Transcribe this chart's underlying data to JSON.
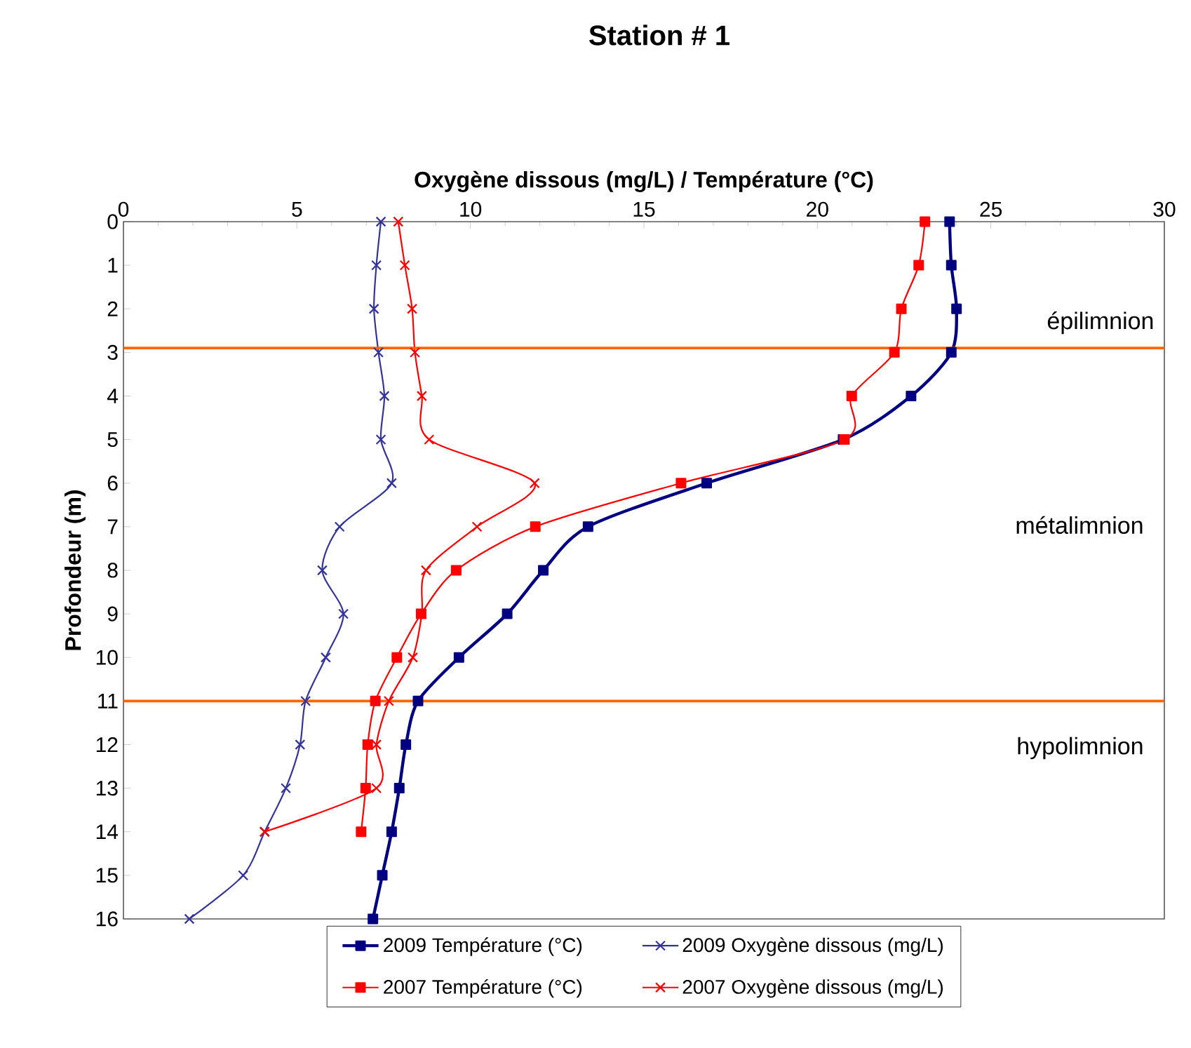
{
  "chart_data": {
    "type": "line",
    "title": "Station # 1",
    "xlabel": "Oxygène dissous (mg/L) / Température (°C)",
    "ylabel": "Profondeur (m)",
    "xlim": [
      0,
      30
    ],
    "xticks": [
      0,
      5,
      10,
      15,
      20,
      25,
      30
    ],
    "ylim": [
      16,
      0
    ],
    "yticks": [
      0,
      1,
      2,
      3,
      4,
      5,
      6,
      7,
      8,
      9,
      10,
      11,
      12,
      13,
      14,
      15,
      16
    ],
    "series": [
      {
        "name": "2009 Température (°C)",
        "color": "#000080",
        "marker": "square",
        "x": [
          23.81,
          23.86,
          24.01,
          23.86,
          22.7,
          20.74,
          16.81,
          13.39,
          12.1,
          11.06,
          9.67,
          8.49,
          8.14,
          7.95,
          7.73,
          7.46,
          7.19
        ],
        "values": [
          0,
          1,
          2,
          3,
          4,
          5,
          6,
          7,
          8,
          9,
          10,
          11,
          12,
          13,
          14,
          15,
          16
        ]
      },
      {
        "name": "2009 Oxygène dissous (mg/L)",
        "color": "#333399",
        "marker": "cross",
        "x": [
          7.42,
          7.29,
          7.22,
          7.35,
          7.52,
          7.42,
          7.73,
          6.23,
          5.73,
          6.34,
          5.83,
          5.25,
          5.09,
          4.68,
          4.07,
          3.45,
          1.9
        ],
        "values": [
          0,
          1,
          2,
          3,
          4,
          5,
          6,
          7,
          8,
          9,
          10,
          11,
          12,
          13,
          14,
          15,
          16
        ]
      },
      {
        "name": "2007 Température (°C)",
        "color": "#ff0000",
        "marker": "square",
        "x": [
          23.1,
          22.92,
          22.42,
          22.22,
          20.99,
          20.78,
          16.07,
          11.87,
          9.59,
          8.58,
          7.88,
          7.26,
          7.04,
          6.98,
          6.85
        ],
        "values": [
          0,
          1,
          2,
          3,
          4,
          5,
          6,
          7,
          8,
          9,
          10,
          11,
          12,
          13,
          14
        ]
      },
      {
        "name": "2007 Oxygène dissous (mg/L)",
        "color": "#ff0000",
        "marker": "cross",
        "x": [
          7.92,
          8.11,
          8.32,
          8.4,
          8.6,
          8.81,
          11.85,
          10.19,
          8.72,
          8.6,
          8.34,
          7.65,
          7.29,
          7.29,
          4.07
        ],
        "values": [
          0,
          1,
          2,
          3,
          4,
          5,
          6,
          7,
          8,
          9,
          10,
          11,
          12,
          13,
          14
        ]
      }
    ],
    "ref_lines": [
      {
        "axis": "y",
        "value": 2.9,
        "color": "#ff6600"
      },
      {
        "axis": "y",
        "value": 11,
        "color": "#ff6600"
      }
    ],
    "annotations": [
      "épilimnion",
      "métalimnion",
      "hypolimnion"
    ],
    "legend": "bottom",
    "grid": false,
    "line_style": "solid"
  }
}
